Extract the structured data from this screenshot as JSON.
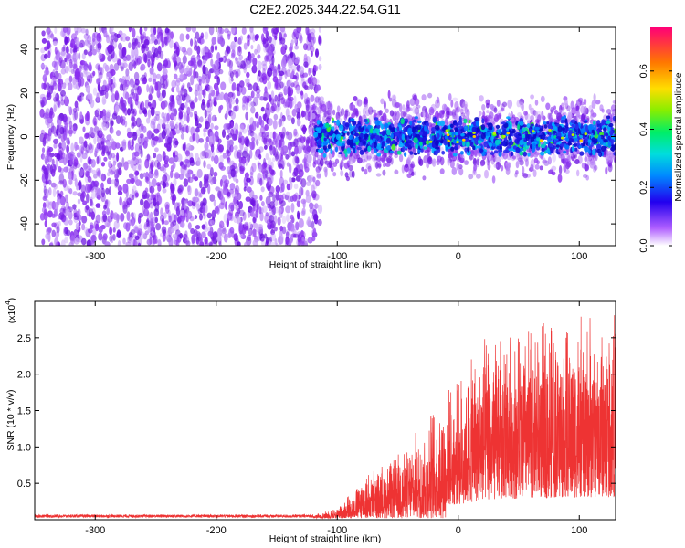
{
  "title": "C2E2.2025.344.22.54.G11",
  "chart_data": [
    {
      "type": "heatmap",
      "xlabel": "Height of straight line (km)",
      "ylabel": "Frequency (Hz)",
      "xlim": [
        -350,
        130
      ],
      "ylim": [
        -50,
        50
      ],
      "x_ticks": [
        -300,
        -200,
        -100,
        0,
        100
      ],
      "y_ticks": [
        -40,
        -20,
        0,
        20,
        40
      ],
      "regions": [
        {
          "x": [
            -350,
            -120
          ],
          "y": [
            -50,
            50
          ],
          "amplitude_range": [
            0.0,
            0.1
          ],
          "description_note": ""
        },
        {
          "x": [
            -120,
            130
          ],
          "y": [
            -10,
            10
          ],
          "amplitude_range": [
            0.05,
            0.4
          ]
        }
      ],
      "colorbar": {
        "label": "Normalized spectral amplitude",
        "range": [
          0.0,
          0.75
        ],
        "ticks": [
          "0.0",
          "0.2",
          "0.4",
          "0.6"
        ]
      }
    },
    {
      "type": "area",
      "xlabel": "Height of straight line (km)",
      "ylabel": "SNR (10 * v/v)",
      "y_multiplier": "(x10",
      "y_multiplier_exp": "4",
      "xlim": [
        -350,
        130
      ],
      "ylim": [
        0,
        30000
      ],
      "x_ticks": [
        -300,
        -200,
        -100,
        0,
        100
      ],
      "y_ticks": [
        "0.5",
        "1.0",
        "1.5",
        "2.0",
        "2.5"
      ],
      "color": "#ee3333",
      "series_envelope": [
        {
          "x": -350,
          "y": 500
        },
        {
          "x": -120,
          "y": 600
        },
        {
          "x": -100,
          "y": 1500
        },
        {
          "x": -80,
          "y": 5000
        },
        {
          "x": -60,
          "y": 7000
        },
        {
          "x": -40,
          "y": 9000
        },
        {
          "x": -20,
          "y": 14000
        },
        {
          "x": 0,
          "y": 17000
        },
        {
          "x": 20,
          "y": 22000
        },
        {
          "x": 60,
          "y": 25000
        },
        {
          "x": 100,
          "y": 25000
        },
        {
          "x": 130,
          "y": 26000
        }
      ]
    }
  ]
}
